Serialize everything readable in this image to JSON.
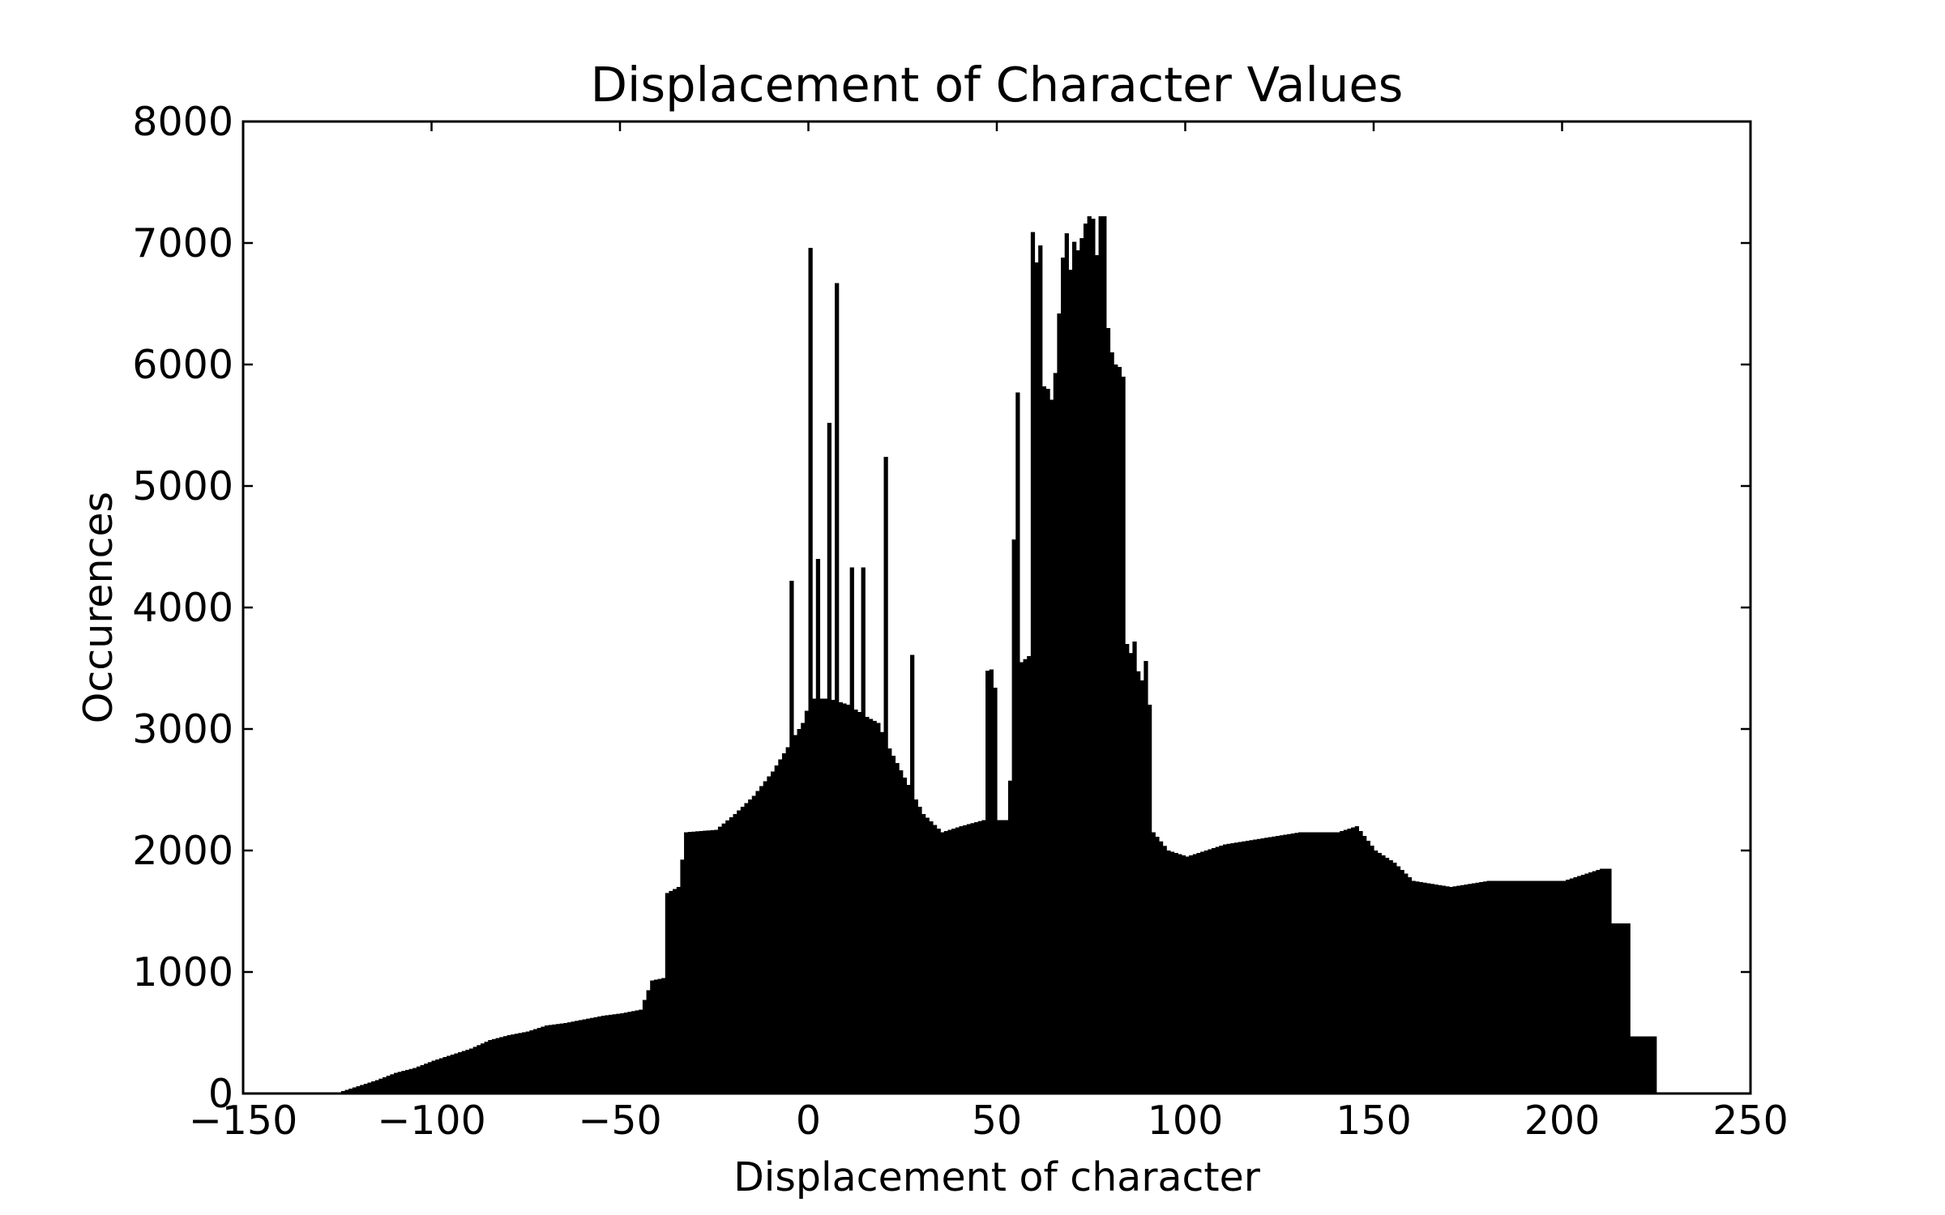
{
  "chart_data": {
    "type": "bar",
    "title": "Displacement of Character Values",
    "xlabel": "Displacement of character",
    "ylabel": "Occurences",
    "xlim": [
      -150,
      250
    ],
    "ylim": [
      0,
      8000
    ],
    "xticks": [
      "−150",
      "−100",
      "−50",
      "0",
      "50",
      "100",
      "150",
      "200",
      "250"
    ],
    "yticks": [
      "0",
      "1000",
      "2000",
      "3000",
      "4000",
      "5000",
      "6000",
      "7000",
      "8000"
    ],
    "grid": false,
    "legend": "none",
    "bar_color": "#000000",
    "bin_width": 1,
    "bin_start": -124,
    "bin_end": 224,
    "anchors": [
      [
        -124,
        20
      ],
      [
        -120,
        60
      ],
      [
        -115,
        110
      ],
      [
        -110,
        170
      ],
      [
        -105,
        210
      ],
      [
        -100,
        270
      ],
      [
        -95,
        320
      ],
      [
        -90,
        370
      ],
      [
        -85,
        440
      ],
      [
        -80,
        480
      ],
      [
        -75,
        510
      ],
      [
        -70,
        560
      ],
      [
        -65,
        580
      ],
      [
        -60,
        610
      ],
      [
        -55,
        640
      ],
      [
        -50,
        660
      ],
      [
        -45,
        690
      ],
      [
        -42,
        930
      ],
      [
        -39,
        950
      ],
      [
        -38,
        1650
      ],
      [
        -35,
        1700
      ],
      [
        -33,
        2150
      ],
      [
        -25,
        2170
      ],
      [
        -20,
        2300
      ],
      [
        -15,
        2450
      ],
      [
        -10,
        2650
      ],
      [
        -5,
        2900
      ],
      [
        -2,
        3050
      ],
      [
        0,
        3250
      ],
      [
        5,
        3250
      ],
      [
        10,
        3200
      ],
      [
        15,
        3100
      ],
      [
        18,
        3050
      ],
      [
        20,
        2900
      ],
      [
        25,
        2600
      ],
      [
        30,
        2300
      ],
      [
        35,
        2150
      ],
      [
        40,
        2200
      ],
      [
        46,
        2250
      ],
      [
        52,
        2250
      ],
      [
        56,
        3550
      ],
      [
        58,
        3600
      ],
      [
        60,
        5500
      ],
      [
        65,
        6300
      ],
      [
        70,
        6900
      ],
      [
        75,
        7100
      ],
      [
        80,
        6100
      ],
      [
        82,
        5900
      ],
      [
        84,
        3700
      ],
      [
        88,
        3400
      ],
      [
        90,
        3200
      ],
      [
        91,
        2150
      ],
      [
        95,
        2000
      ],
      [
        100,
        1950
      ],
      [
        110,
        2050
      ],
      [
        120,
        2100
      ],
      [
        130,
        2150
      ],
      [
        140,
        2150
      ],
      [
        145,
        2200
      ],
      [
        150,
        2000
      ],
      [
        155,
        1900
      ],
      [
        160,
        1750
      ],
      [
        170,
        1700
      ],
      [
        180,
        1750
      ],
      [
        190,
        1750
      ],
      [
        200,
        1750
      ],
      [
        210,
        1850
      ],
      [
        212,
        1850
      ],
      [
        213,
        1400
      ],
      [
        217,
        1400
      ],
      [
        218,
        470
      ],
      [
        223,
        470
      ]
    ],
    "spikes": [
      [
        -5,
        4220
      ],
      [
        0,
        6960
      ],
      [
        2,
        4400
      ],
      [
        5,
        5520
      ],
      [
        7,
        6670
      ],
      [
        11,
        4330
      ],
      [
        14,
        4330
      ],
      [
        20,
        5240
      ],
      [
        27,
        3610
      ],
      [
        47,
        3480
      ],
      [
        48,
        3490
      ],
      [
        49,
        3340
      ],
      [
        54,
        4560
      ],
      [
        55,
        5770
      ],
      [
        59,
        7090
      ],
      [
        60,
        6840
      ],
      [
        61,
        6980
      ],
      [
        63,
        5800
      ],
      [
        64,
        5710
      ],
      [
        65,
        5930
      ],
      [
        67,
        6880
      ],
      [
        68,
        7080
      ],
      [
        70,
        7010
      ],
      [
        72,
        7040
      ],
      [
        73,
        7160
      ],
      [
        74,
        7220
      ],
      [
        75,
        7200
      ],
      [
        77,
        7220
      ],
      [
        78,
        7220
      ],
      [
        82,
        5980
      ],
      [
        83,
        5900
      ],
      [
        86,
        3720
      ],
      [
        89,
        3560
      ]
    ]
  }
}
